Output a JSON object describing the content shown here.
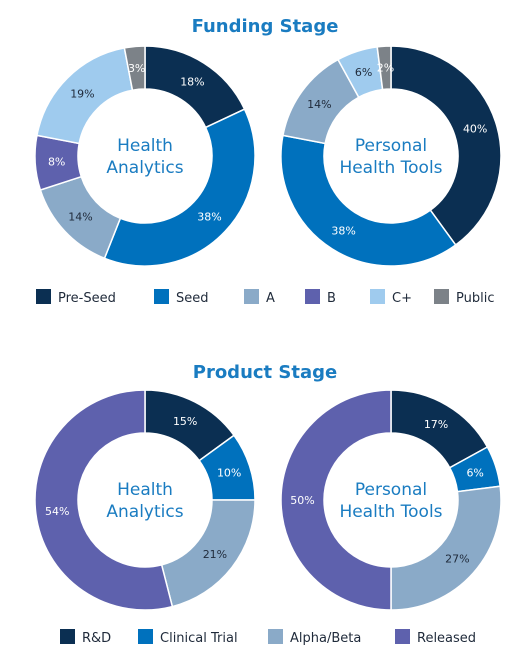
{
  "chart_data": [
    {
      "type": "pie",
      "section_title": "Funding Stage",
      "title": "Health Analytics",
      "title_lines": [
        "Health",
        "Analytics"
      ],
      "categories": [
        "Pre-Seed",
        "Seed",
        "A",
        "B",
        "C+",
        "Public"
      ],
      "values": [
        18,
        38,
        14,
        8,
        19,
        3
      ],
      "labels": [
        "18%",
        "38%",
        "14%",
        "8%",
        "19%",
        "3%"
      ]
    },
    {
      "type": "pie",
      "section_title": "Funding Stage",
      "title": "Personal Health Tools",
      "title_lines": [
        "Personal",
        "Health Tools"
      ],
      "categories": [
        "Pre-Seed",
        "Seed",
        "A",
        "B",
        "C+",
        "Public"
      ],
      "values": [
        40,
        38,
        14,
        0,
        6,
        2
      ],
      "labels": [
        "40%",
        "38%",
        "14%",
        "",
        "6%",
        "2%"
      ]
    },
    {
      "type": "pie",
      "section_title": "Product Stage",
      "title": "Health Analytics",
      "title_lines": [
        "Health",
        "Analytics"
      ],
      "categories": [
        "R&D",
        "Clinical Trial",
        "Alpha/Beta",
        "Released"
      ],
      "values": [
        15,
        10,
        21,
        54
      ],
      "labels": [
        "15%",
        "10%",
        "21%",
        "54%"
      ]
    },
    {
      "type": "pie",
      "section_title": "Product Stage",
      "title": "Personal Health Tools",
      "title_lines": [
        "Personal",
        "Health Tools"
      ],
      "categories": [
        "R&D",
        "Clinical Trial",
        "Alpha/Beta",
        "Released"
      ],
      "values": [
        17,
        6,
        27,
        50
      ],
      "labels": [
        "17%",
        "6%",
        "27%",
        "50%"
      ]
    }
  ],
  "sections": [
    {
      "title": "Funding Stage",
      "legend": [
        {
          "label": "Pre-Seed",
          "color": "#0b2f52"
        },
        {
          "label": "Seed",
          "color": "#0071bd"
        },
        {
          "label": "A",
          "color": "#8aaac8"
        },
        {
          "label": "B",
          "color": "#5e61ad"
        },
        {
          "label": "C+",
          "color": "#9fcbee"
        },
        {
          "label": "Public",
          "color": "#7c8288"
        }
      ]
    },
    {
      "title": "Product Stage",
      "legend": [
        {
          "label": "R&D",
          "color": "#0b2f52"
        },
        {
          "label": "Clinical Trial",
          "color": "#0071bd"
        },
        {
          "label": "Alpha/Beta",
          "color": "#8aaac8"
        },
        {
          "label": "Released",
          "color": "#5e61ad"
        }
      ]
    }
  ],
  "label_colors": {
    "dark": "#1f2a3a",
    "light": "#ffffff"
  }
}
